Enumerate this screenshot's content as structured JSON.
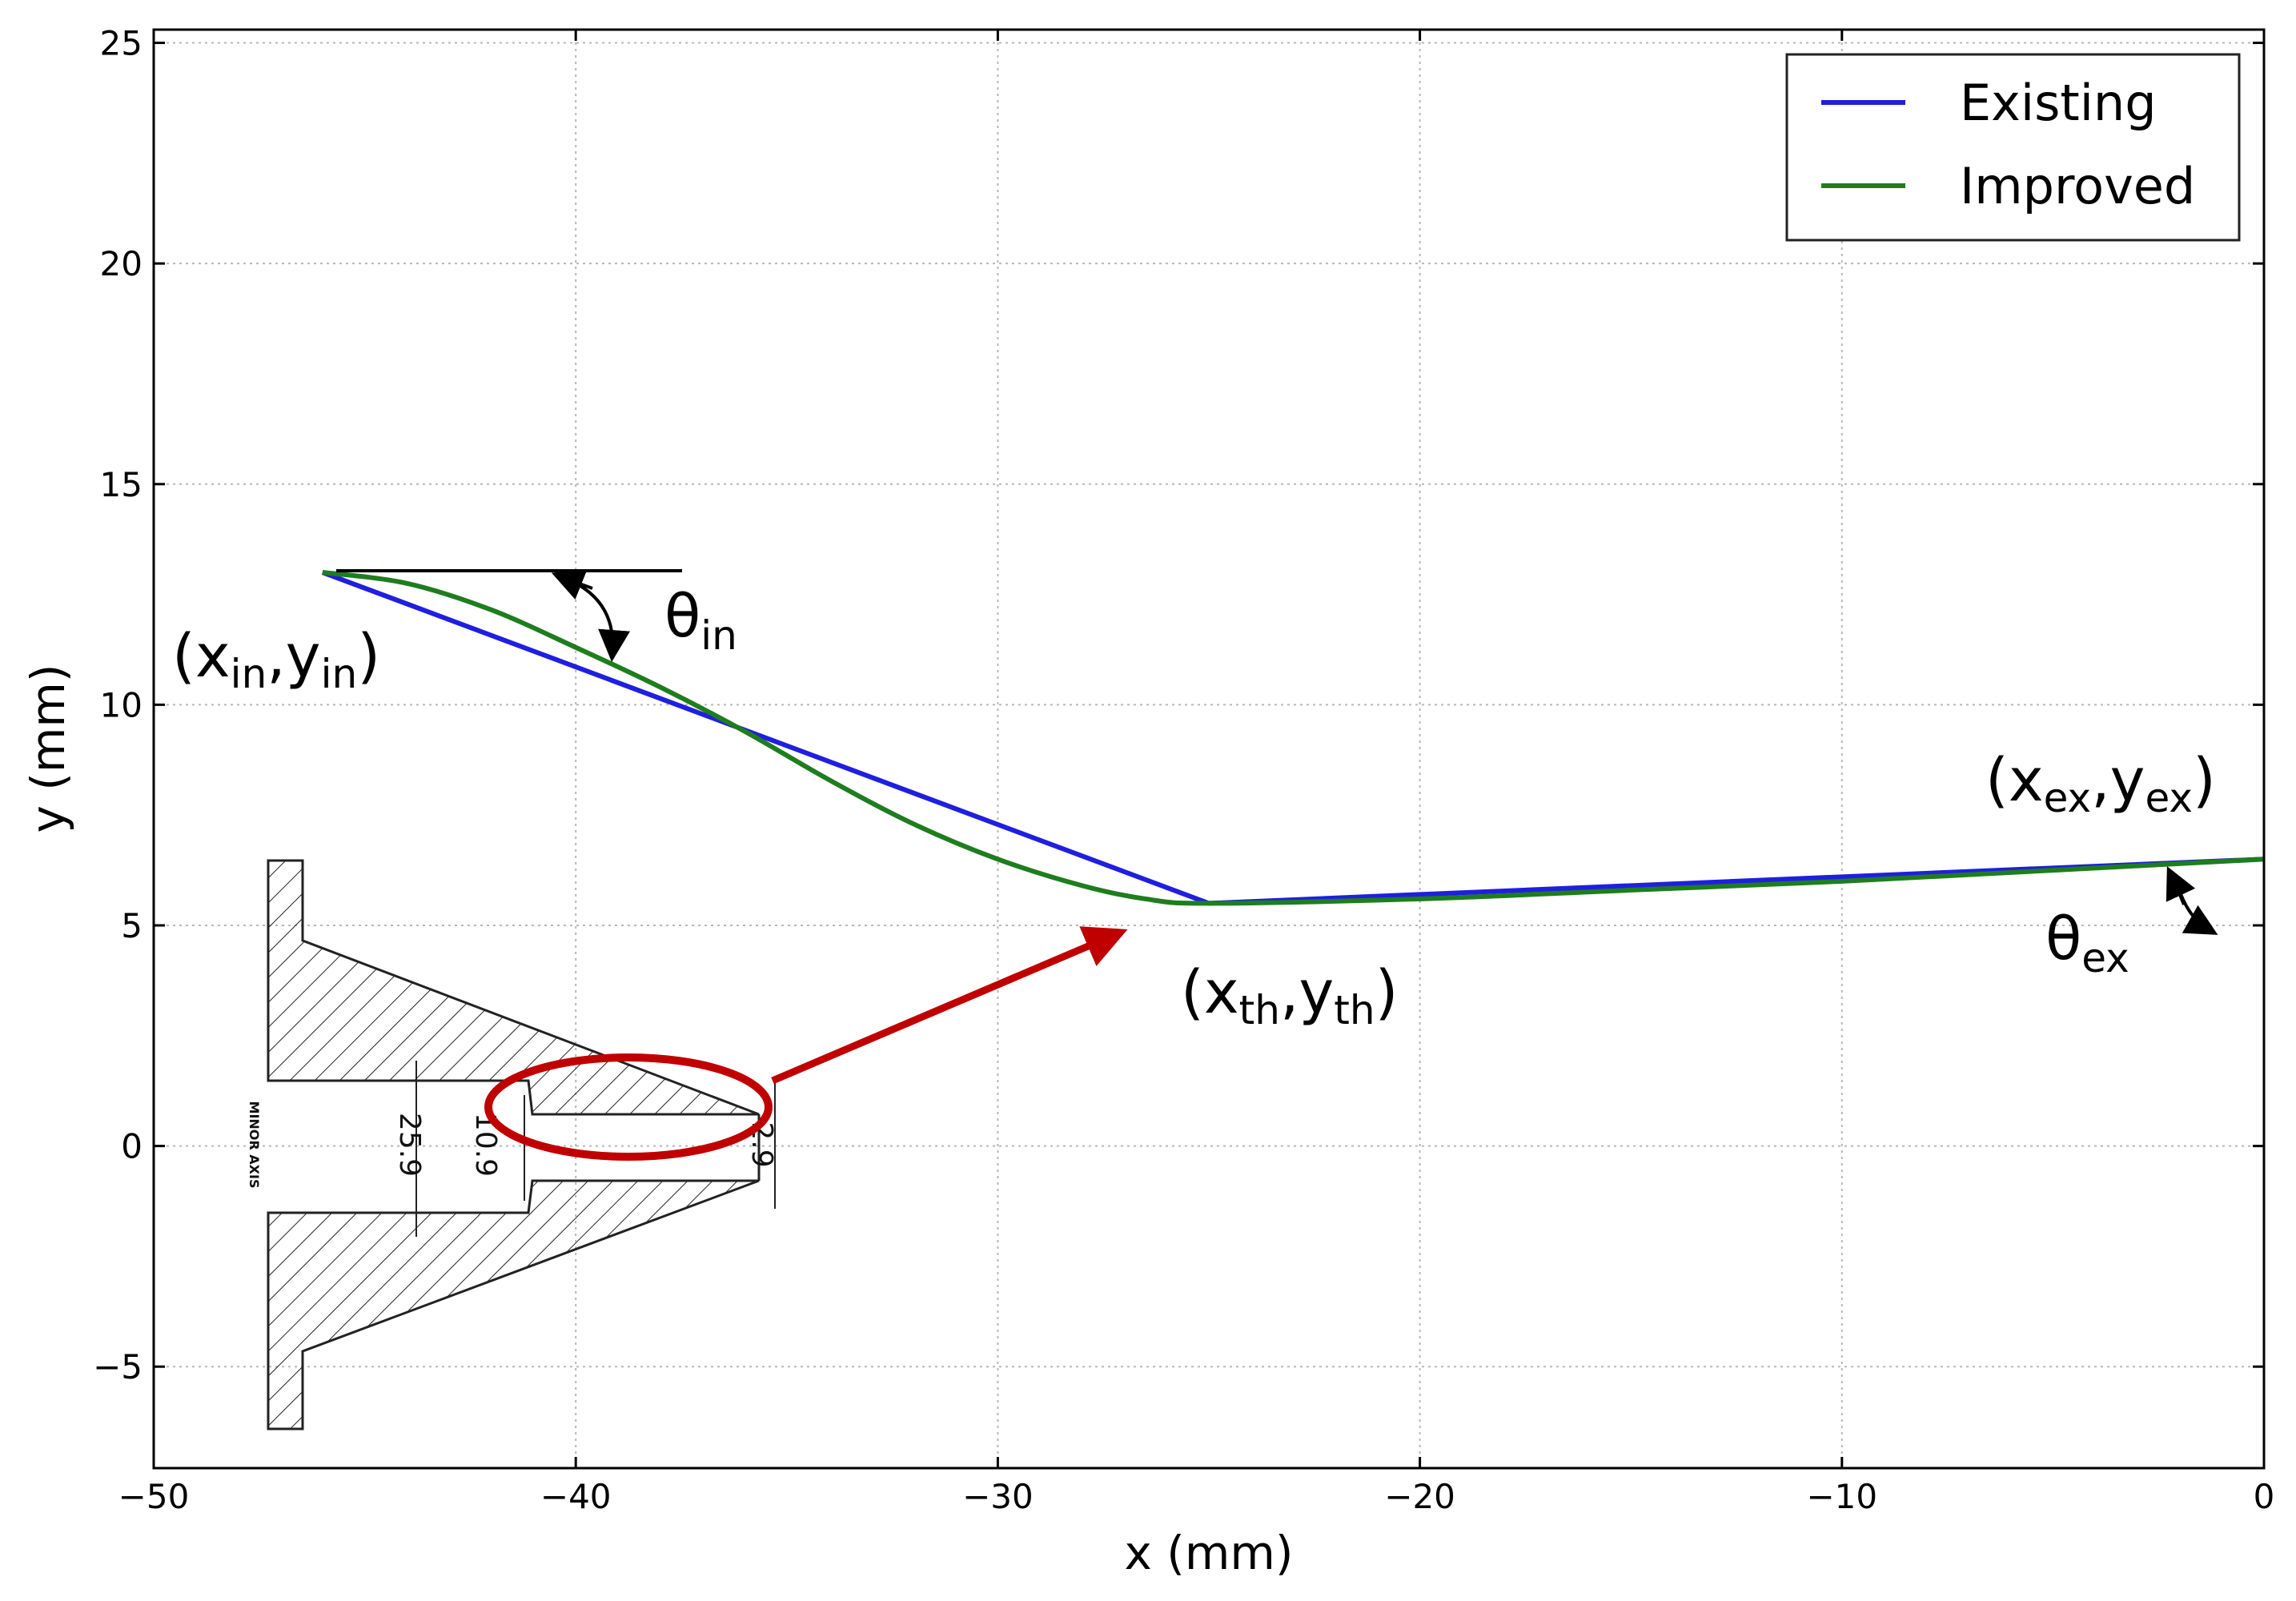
{
  "chart_data": {
    "type": "line",
    "xlabel": "x (mm)",
    "ylabel": "y (mm)",
    "xlim": [
      -50,
      0
    ],
    "ylim": [
      -7.3,
      25.3
    ],
    "x_ticks": [
      -50,
      -40,
      -30,
      -20,
      -10,
      0
    ],
    "x_tick_labels": [
      "−50",
      "−40",
      "−30",
      "−20",
      "−10",
      "0"
    ],
    "y_ticks": [
      -5,
      0,
      5,
      10,
      15,
      20,
      25
    ],
    "y_tick_labels": [
      "−5",
      "0",
      "5",
      "10",
      "15",
      "20",
      "25"
    ],
    "grid": true,
    "legend_position": "top-right",
    "series": [
      {
        "name": "Existing",
        "color": "#1f1fdf",
        "x": [
          -46,
          -25,
          0
        ],
        "y": [
          13,
          5.5,
          6.5
        ]
      },
      {
        "name": "Improved",
        "color": "#1e7d1e",
        "x": [
          -46,
          -44,
          -42,
          -40,
          -38,
          -36,
          -34,
          -32,
          -30,
          -28,
          -26.5,
          -25,
          -20,
          -15,
          -10,
          -5,
          0
        ],
        "y": [
          13,
          12.75,
          12.15,
          11.3,
          10.4,
          9.4,
          8.3,
          7.3,
          6.5,
          5.9,
          5.6,
          5.5,
          5.6,
          5.8,
          6.0,
          6.25,
          6.5
        ]
      }
    ],
    "annotations": {
      "inlet": {
        "main": "(x",
        "sub1": "in",
        "mid": ",y",
        "sub2": "in",
        "end": ")"
      },
      "theta_in": {
        "main": "θ",
        "sub": "in"
      },
      "throat": {
        "main": "(x",
        "sub1": "th",
        "mid": ",y",
        "sub2": "th",
        "end": ")"
      },
      "exit": {
        "main": "(x",
        "sub1": "ex",
        "mid": ",y",
        "sub2": "ex",
        "end": ")"
      },
      "theta_ex": {
        "main": "θ",
        "sub": "ex"
      }
    },
    "inset": {
      "dimension_labels": [
        "25.9",
        "10.9",
        "2.9"
      ],
      "axis_label": "MINOR AXIS"
    }
  }
}
